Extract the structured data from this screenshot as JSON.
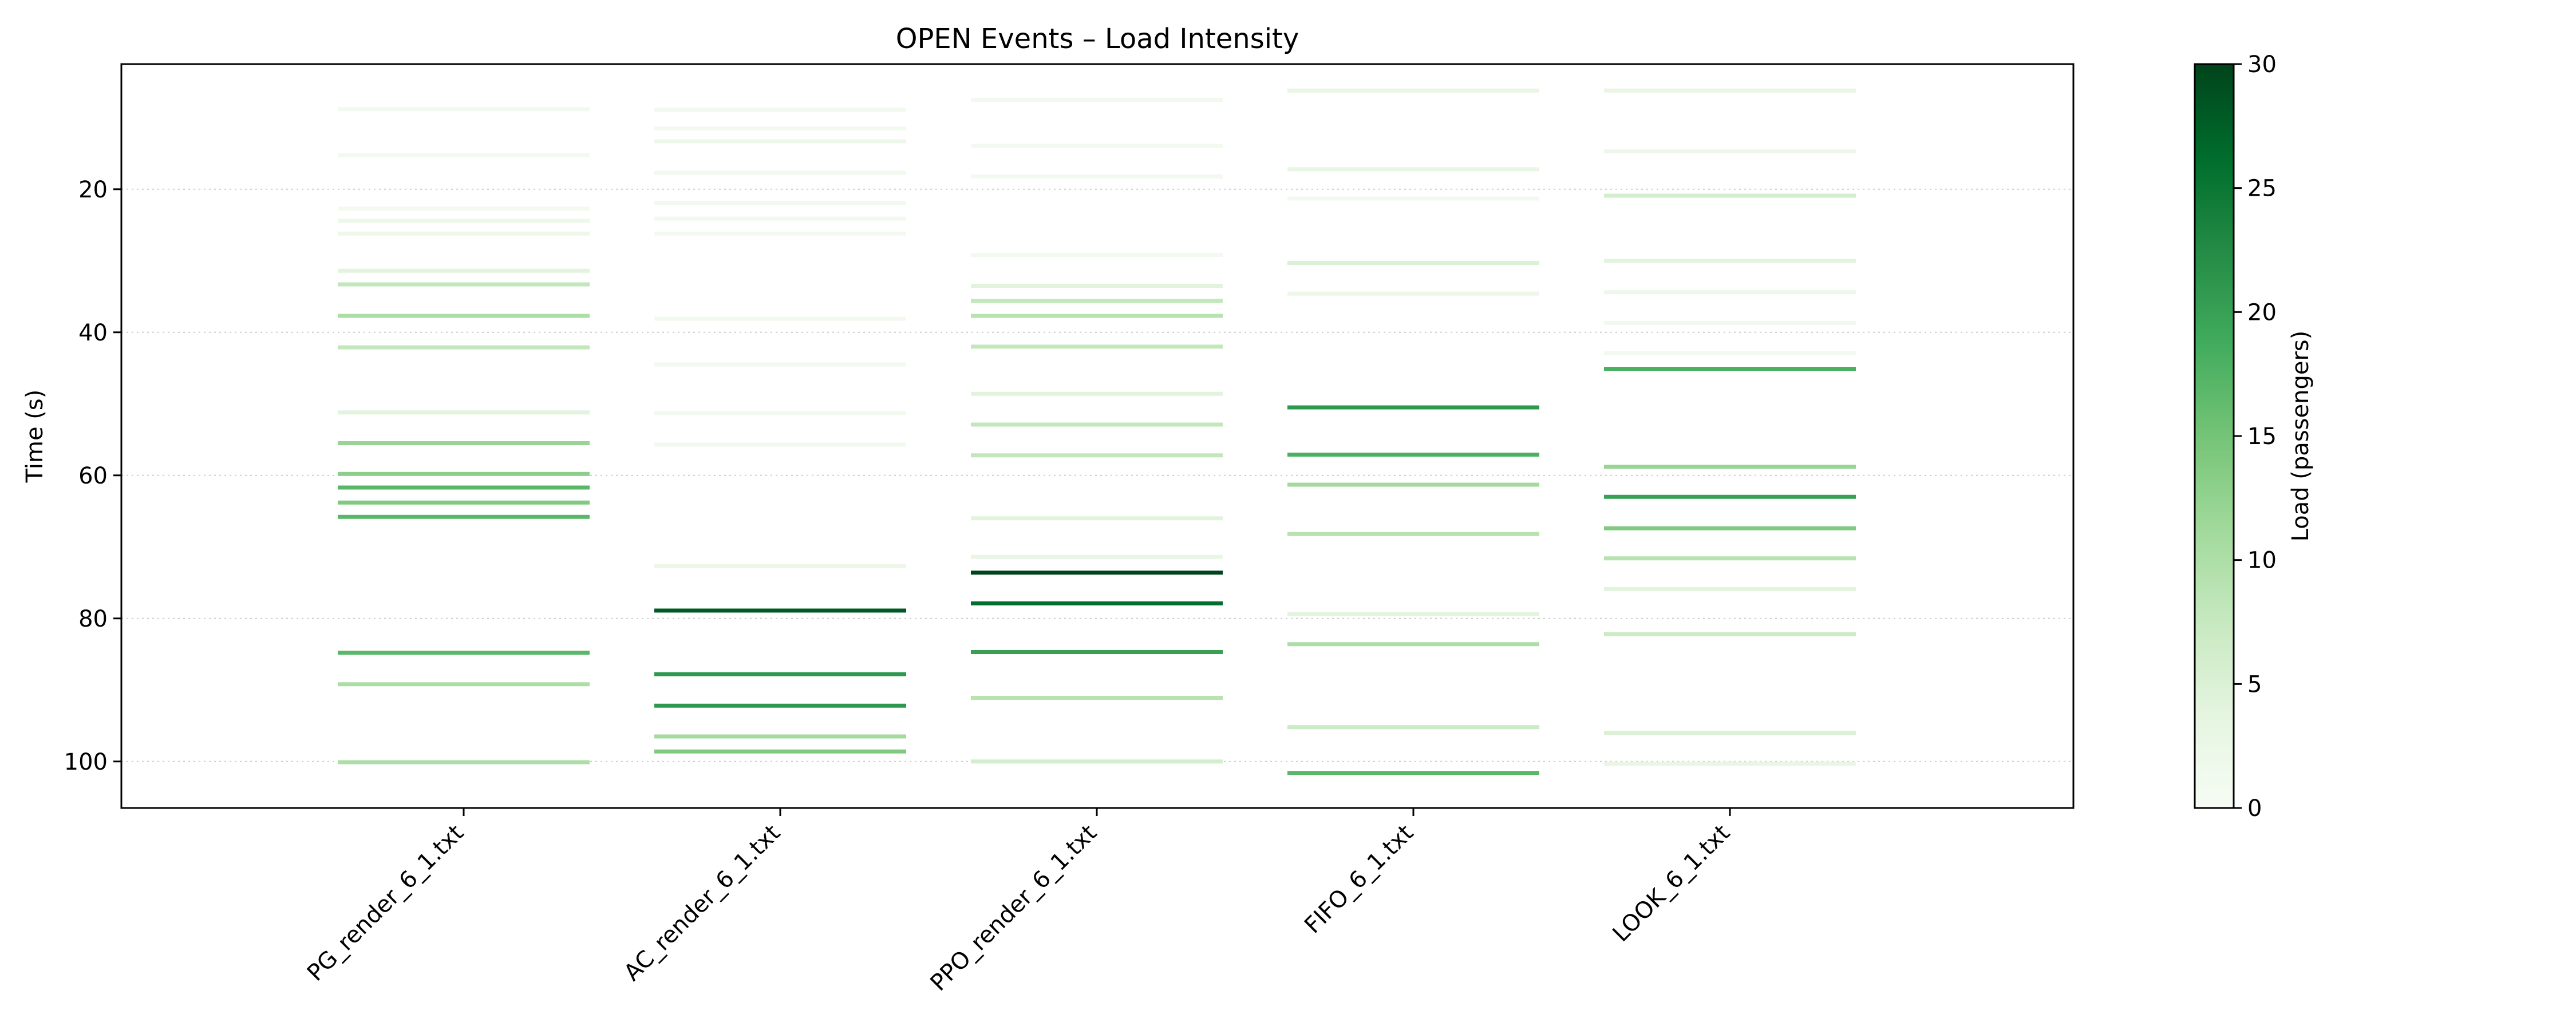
{
  "chart_data": {
    "type": "event_plot",
    "title": "OPEN Events – Load Intensity",
    "xlabel": "",
    "ylabel": "Time (s)",
    "y_inverted": true,
    "ylim": [
      2.5,
      106.5
    ],
    "yticks": [
      20,
      40,
      60,
      80,
      100
    ],
    "grid": "horizontal-dotted",
    "categories": [
      "PG_render_6_1.txt",
      "AC_render_6_1.txt",
      "PPO_render_6_1.txt",
      "FIFO_6_1.txt",
      "LOOK_6_1.txt"
    ],
    "colorbar": {
      "label": "Load (passengers)",
      "min": 0,
      "max": 30,
      "ticks": [
        0,
        5,
        10,
        15,
        20,
        25,
        30
      ],
      "colormap": "Greens"
    },
    "series": [
      {
        "category": "PG_render_6_1.txt",
        "events": [
          {
            "t": 8.8,
            "load": 1
          },
          {
            "t": 15.2,
            "load": 1
          },
          {
            "t": 22.7,
            "load": 1
          },
          {
            "t": 24.4,
            "load": 2
          },
          {
            "t": 26.2,
            "load": 2
          },
          {
            "t": 31.4,
            "load": 4
          },
          {
            "t": 33.3,
            "load": 8
          },
          {
            "t": 37.7,
            "load": 10
          },
          {
            "t": 42.1,
            "load": 8
          },
          {
            "t": 51.2,
            "load": 4
          },
          {
            "t": 55.5,
            "load": 12
          },
          {
            "t": 59.8,
            "load": 13
          },
          {
            "t": 61.7,
            "load": 17
          },
          {
            "t": 63.8,
            "load": 14
          },
          {
            "t": 65.8,
            "load": 17
          },
          {
            "t": 84.8,
            "load": 17
          },
          {
            "t": 89.2,
            "load": 10
          },
          {
            "t": 100.1,
            "load": 10
          }
        ]
      },
      {
        "category": "AC_render_6_1.txt",
        "events": [
          {
            "t": 8.9,
            "load": 1
          },
          {
            "t": 11.5,
            "load": 1
          },
          {
            "t": 13.3,
            "load": 2
          },
          {
            "t": 17.7,
            "load": 1
          },
          {
            "t": 21.9,
            "load": 1
          },
          {
            "t": 24.1,
            "load": 1
          },
          {
            "t": 26.2,
            "load": 1
          },
          {
            "t": 38.1,
            "load": 1
          },
          {
            "t": 44.5,
            "load": 1
          },
          {
            "t": 51.3,
            "load": 1
          },
          {
            "t": 55.7,
            "load": 1
          },
          {
            "t": 72.7,
            "load": 2
          },
          {
            "t": 78.9,
            "load": 28
          },
          {
            "t": 87.8,
            "load": 21
          },
          {
            "t": 92.2,
            "load": 21
          },
          {
            "t": 96.5,
            "load": 11
          },
          {
            "t": 98.6,
            "load": 14
          }
        ]
      },
      {
        "category": "PPO_render_6_1.txt",
        "events": [
          {
            "t": 7.5,
            "load": 1
          },
          {
            "t": 13.9,
            "load": 1
          },
          {
            "t": 18.2,
            "load": 1
          },
          {
            "t": 29.2,
            "load": 1
          },
          {
            "t": 33.5,
            "load": 4
          },
          {
            "t": 35.6,
            "load": 8
          },
          {
            "t": 37.7,
            "load": 9
          },
          {
            "t": 42.0,
            "load": 8
          },
          {
            "t": 48.6,
            "load": 4
          },
          {
            "t": 52.9,
            "load": 8
          },
          {
            "t": 57.2,
            "load": 8
          },
          {
            "t": 66.0,
            "load": 4
          },
          {
            "t": 71.4,
            "load": 3
          },
          {
            "t": 73.6,
            "load": 30
          },
          {
            "t": 77.9,
            "load": 26
          },
          {
            "t": 84.7,
            "load": 20
          },
          {
            "t": 91.1,
            "load": 9
          },
          {
            "t": 100.0,
            "load": 6
          }
        ]
      },
      {
        "category": "FIFO_6_1.txt",
        "events": [
          {
            "t": 6.2,
            "load": 3
          },
          {
            "t": 17.2,
            "load": 3
          },
          {
            "t": 21.3,
            "load": 1
          },
          {
            "t": 30.3,
            "load": 5
          },
          {
            "t": 34.6,
            "load": 2
          },
          {
            "t": 50.5,
            "load": 21
          },
          {
            "t": 57.1,
            "load": 18
          },
          {
            "t": 61.3,
            "load": 11
          },
          {
            "t": 68.2,
            "load": 9
          },
          {
            "t": 79.4,
            "load": 4
          },
          {
            "t": 83.6,
            "load": 10
          },
          {
            "t": 95.2,
            "load": 7
          },
          {
            "t": 101.6,
            "load": 17
          }
        ]
      },
      {
        "category": "LOOK_6_1.txt",
        "events": [
          {
            "t": 6.2,
            "load": 3
          },
          {
            "t": 14.7,
            "load": 2
          },
          {
            "t": 20.9,
            "load": 6
          },
          {
            "t": 30.0,
            "load": 4
          },
          {
            "t": 34.4,
            "load": 2
          },
          {
            "t": 38.7,
            "load": 1
          },
          {
            "t": 42.9,
            "load": 1
          },
          {
            "t": 45.1,
            "load": 18
          },
          {
            "t": 58.8,
            "load": 12
          },
          {
            "t": 63.0,
            "load": 20
          },
          {
            "t": 67.4,
            "load": 14
          },
          {
            "t": 71.6,
            "load": 9
          },
          {
            "t": 75.9,
            "load": 4
          },
          {
            "t": 82.2,
            "load": 7
          },
          {
            "t": 96.0,
            "load": 5
          },
          {
            "t": 100.3,
            "load": 3
          }
        ]
      }
    ]
  }
}
